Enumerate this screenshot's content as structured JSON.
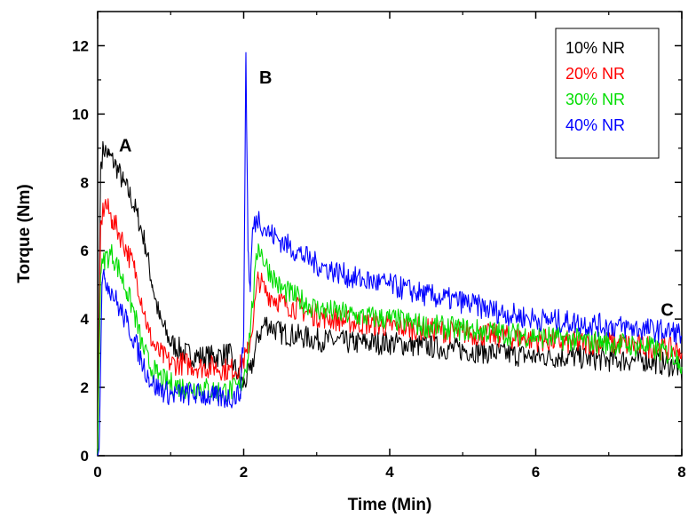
{
  "chart_data": {
    "type": "line",
    "title": "",
    "xlabel": "Time (Min)",
    "ylabel": "Torque (Nm)",
    "xlim": [
      0,
      8
    ],
    "ylim": [
      0,
      13
    ],
    "xticks": [
      "0",
      "2",
      "4",
      "6",
      "8"
    ],
    "yticks": [
      "0",
      "2",
      "4",
      "6",
      "8",
      "10",
      "12"
    ],
    "grid": false,
    "legend_position": "top-right",
    "annotations": [
      {
        "text": "A",
        "x": 0.38,
        "y": 8.9
      },
      {
        "text": "B",
        "x": 2.3,
        "y": 10.9
      },
      {
        "text": "C",
        "x": 7.8,
        "y": 4.1
      }
    ],
    "series": [
      {
        "name": "10% NR",
        "color": "#000000",
        "x": [
          0.0,
          0.04,
          0.08,
          0.15,
          0.25,
          0.35,
          0.45,
          0.55,
          0.65,
          0.75,
          0.85,
          1.0,
          1.2,
          1.4,
          1.6,
          1.8,
          1.95,
          2.0,
          2.1,
          2.2,
          2.3,
          2.5,
          3.0,
          3.5,
          4.0,
          4.5,
          5.0,
          5.5,
          6.0,
          6.5,
          7.0,
          7.5,
          7.95,
          8.0
        ],
        "y": [
          0.0,
          8.5,
          9.0,
          8.8,
          8.5,
          8.0,
          7.6,
          7.0,
          6.2,
          5.0,
          4.0,
          3.3,
          3.0,
          2.9,
          2.9,
          3.0,
          2.2,
          2.1,
          2.5,
          3.5,
          3.9,
          3.6,
          3.4,
          3.3,
          3.3,
          3.2,
          3.1,
          3.0,
          2.9,
          2.9,
          2.8,
          2.8,
          2.6,
          2.2
        ]
      },
      {
        "name": "20% NR",
        "color": "#ff0000",
        "x": [
          0.0,
          0.04,
          0.1,
          0.2,
          0.3,
          0.4,
          0.5,
          0.6,
          0.7,
          0.8,
          0.9,
          1.0,
          1.2,
          1.4,
          1.6,
          1.8,
          1.95,
          2.05,
          2.1,
          2.2,
          2.3,
          2.5,
          3.0,
          3.5,
          4.0,
          4.5,
          5.0,
          5.5,
          6.0,
          6.5,
          7.0,
          7.5,
          7.95,
          8.0
        ],
        "y": [
          0.0,
          6.8,
          7.4,
          6.9,
          6.5,
          6.0,
          5.5,
          4.6,
          3.6,
          3.1,
          2.9,
          2.7,
          2.7,
          2.6,
          2.6,
          2.5,
          2.6,
          3.0,
          3.5,
          5.2,
          4.8,
          4.5,
          4.1,
          3.9,
          3.8,
          3.7,
          3.6,
          3.5,
          3.4,
          3.3,
          3.3,
          3.2,
          3.1,
          3.0
        ]
      },
      {
        "name": "30% NR",
        "color": "#00dd00",
        "x": [
          0.0,
          0.04,
          0.1,
          0.2,
          0.3,
          0.4,
          0.5,
          0.6,
          0.7,
          0.8,
          0.9,
          1.0,
          1.2,
          1.4,
          1.6,
          1.8,
          1.95,
          2.05,
          2.1,
          2.2,
          2.3,
          2.5,
          3.0,
          3.5,
          4.0,
          4.5,
          5.0,
          5.5,
          6.0,
          6.5,
          7.0,
          7.5,
          7.95,
          8.0
        ],
        "y": [
          0.0,
          5.3,
          5.8,
          5.9,
          5.4,
          4.8,
          4.2,
          3.3,
          2.7,
          2.4,
          2.2,
          2.1,
          2.0,
          2.0,
          1.9,
          1.9,
          2.0,
          2.8,
          4.0,
          6.2,
          5.6,
          4.9,
          4.3,
          4.1,
          4.0,
          3.8,
          3.7,
          3.6,
          3.5,
          3.4,
          3.3,
          3.2,
          2.9,
          2.6
        ]
      },
      {
        "name": "40% NR",
        "color": "#0000ff",
        "x": [
          0.0,
          0.02,
          0.06,
          0.1,
          0.2,
          0.3,
          0.4,
          0.5,
          0.6,
          0.7,
          0.8,
          0.9,
          1.0,
          1.2,
          1.4,
          1.6,
          1.8,
          1.95,
          2.0,
          2.03,
          2.06,
          2.09,
          2.12,
          2.2,
          2.3,
          2.5,
          3.0,
          3.5,
          4.0,
          4.5,
          5.0,
          5.5,
          6.0,
          6.5,
          7.0,
          7.5,
          7.95,
          8.0
        ],
        "y": [
          0.0,
          0.2,
          5.0,
          5.2,
          4.8,
          4.3,
          3.9,
          3.4,
          2.8,
          2.3,
          2.0,
          1.9,
          1.8,
          1.8,
          1.8,
          1.7,
          1.7,
          1.8,
          3.5,
          11.8,
          6.0,
          4.8,
          6.6,
          7.0,
          6.6,
          6.3,
          5.6,
          5.2,
          5.0,
          4.7,
          4.5,
          4.2,
          4.0,
          3.9,
          3.8,
          3.7,
          3.6,
          3.5
        ]
      }
    ]
  }
}
